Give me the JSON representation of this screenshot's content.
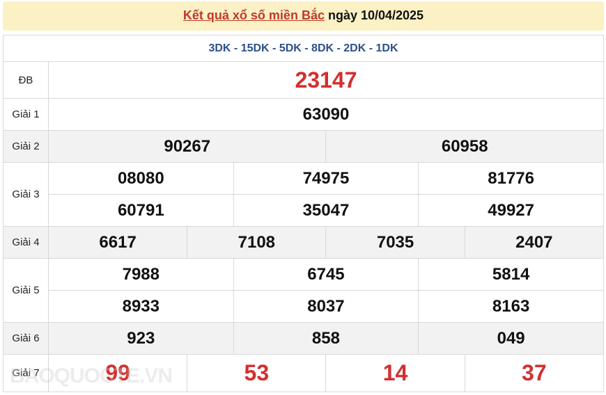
{
  "header": {
    "title_link": "Kết quả xổ số miền Bắc",
    "title_rest": " ngày 10/04/2025"
  },
  "codes": "3DK - 15DK - 5DK - 8DK - 2DK - 1DK",
  "prizes": {
    "db": {
      "label": "ĐB",
      "values": [
        "23147"
      ]
    },
    "g1": {
      "label": "Giải 1",
      "values": [
        "63090"
      ]
    },
    "g2": {
      "label": "Giải 2",
      "values": [
        "90267",
        "60958"
      ]
    },
    "g3": {
      "label": "Giải 3",
      "values": [
        "08080",
        "74975",
        "81776",
        "60791",
        "35047",
        "49927"
      ]
    },
    "g4": {
      "label": "Giải 4",
      "values": [
        "6617",
        "7108",
        "7035",
        "2407"
      ]
    },
    "g5": {
      "label": "Giải 5",
      "values": [
        "7988",
        "6745",
        "5814",
        "8933",
        "8037",
        "8163"
      ]
    },
    "g6": {
      "label": "Giải 6",
      "values": [
        "923",
        "858",
        "049"
      ]
    },
    "g7": {
      "label": "Giải 7",
      "values": [
        "99",
        "53",
        "14",
        "37"
      ]
    }
  },
  "watermark": "BAOQUOCTE.VN",
  "colors": {
    "accent_red": "#d32f2f",
    "code_blue": "#2c4f8c",
    "header_bg": "#fbf1c4"
  }
}
